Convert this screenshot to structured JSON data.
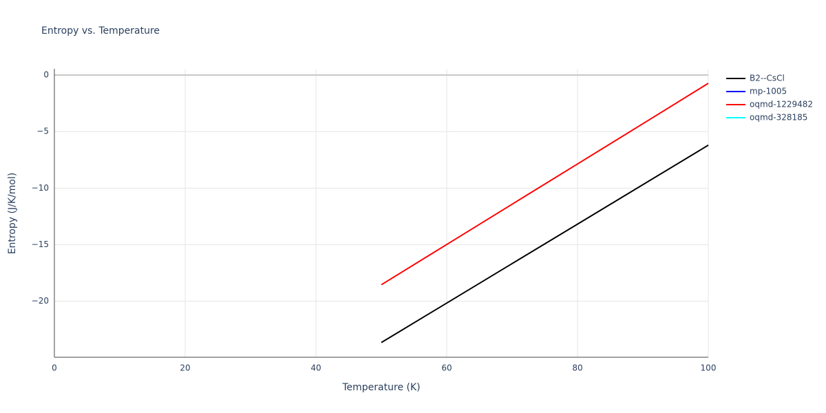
{
  "chart_data": {
    "type": "line",
    "title": "Entropy vs. Temperature",
    "x_label": "Temperature (K)",
    "y_label": "Entropy (J/K/mol)",
    "x": [
      50,
      60,
      70,
      80,
      90,
      100
    ],
    "series": [
      {
        "name": "B2--CsCl",
        "color": "#000000",
        "values": [
          -23.65,
          -20.16,
          -16.67,
          -13.18,
          -9.69,
          -6.2
        ]
      },
      {
        "name": "mp-1005",
        "color": "#0000ff",
        "values": [
          null,
          null,
          null,
          null,
          null,
          null
        ]
      },
      {
        "name": "oqmd-1229482",
        "color": "#ff0000",
        "values": [
          -18.54,
          -14.98,
          -11.42,
          -7.86,
          -4.3,
          -0.73
        ]
      },
      {
        "name": "oqmd-328185",
        "color": "#00ffff",
        "values": [
          null,
          null,
          null,
          null,
          null,
          null
        ]
      }
    ],
    "xlim": [
      0,
      100
    ],
    "xticks": [
      0,
      20,
      40,
      60,
      80,
      100
    ],
    "ylim": [
      -24.95,
      0.55
    ],
    "yticks": [
      {
        "value": -20,
        "label": "−20"
      },
      {
        "value": -15,
        "label": "−15"
      },
      {
        "value": -10,
        "label": "−10"
      },
      {
        "value": -5,
        "label": "−5"
      },
      0
    ],
    "grid": true,
    "legend": "right"
  }
}
